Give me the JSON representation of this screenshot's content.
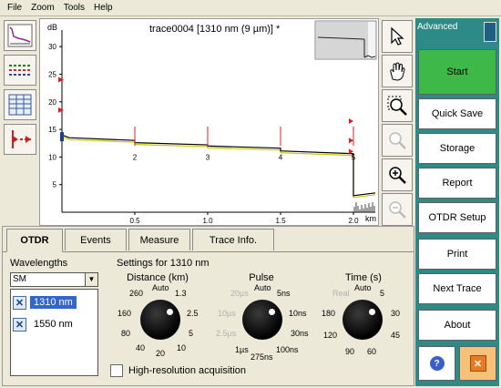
{
  "menu": [
    "File",
    "Zoom",
    "Tools",
    "Help"
  ],
  "graph": {
    "title": "trace0004 [1310 nm (9 µm)] *",
    "y_unit": "dB",
    "x_unit": "km",
    "y_ticks": [
      "30",
      "25",
      "20",
      "15",
      "10",
      "5"
    ],
    "x_ticks": [
      "0.5",
      "1.0",
      "1.5",
      "2.0"
    ],
    "event_labels": [
      "2",
      "3",
      "4",
      "5"
    ]
  },
  "chart_data": {
    "type": "line",
    "title": "trace0004 [1310 nm (9 µm)] *",
    "xlabel": "km",
    "ylabel": "dB",
    "xlim": [
      0,
      2.15
    ],
    "ylim": [
      0,
      33
    ],
    "x_ticks": [
      0.5,
      1.0,
      1.5,
      2.0
    ],
    "y_ticks": [
      5,
      10,
      15,
      20,
      25,
      30
    ],
    "series": [
      {
        "x": [
          0,
          0.05,
          0.5,
          0.5,
          1.0,
          1.0,
          1.5,
          1.5,
          2.0,
          2.0,
          2.15
        ],
        "values": [
          14,
          13.5,
          13.0,
          12.6,
          12.2,
          12.0,
          11.6,
          11.1,
          10.6,
          3.0,
          3.5
        ]
      }
    ],
    "events": [
      {
        "label": "2",
        "x": 0.5
      },
      {
        "label": "3",
        "x": 1.0
      },
      {
        "label": "4",
        "x": 1.5
      },
      {
        "label": "5",
        "x": 2.0
      }
    ]
  },
  "side": {
    "header": "Advanced",
    "buttons": [
      "Start",
      "Quick Save",
      "Storage",
      "Report",
      "OTDR Setup",
      "Print",
      "Next Trace",
      "About"
    ],
    "help_glyph": "?",
    "close_glyph": "✕"
  },
  "tabs": [
    "OTDR",
    "Events",
    "Measure",
    "Trace Info."
  ],
  "wavelengths": {
    "label": "Wavelengths",
    "mode": "SM",
    "items": [
      "1310 nm",
      "1550 nm"
    ]
  },
  "settings": {
    "title": "Settings for 1310 nm",
    "distance": {
      "title": "Distance (km)",
      "labels": [
        "260",
        "Auto",
        "1.3",
        "160",
        "2.5",
        "80",
        "5",
        "40",
        "20",
        "10"
      ]
    },
    "pulse": {
      "title": "Pulse",
      "labels": [
        "20µs",
        "Auto",
        "5ns",
        "10µs",
        "10ns",
        "2.5µs",
        "30ns",
        "1µs",
        "275ns",
        "100ns"
      ]
    },
    "time": {
      "title": "Time (s)",
      "labels": [
        "Real",
        "Auto",
        "5",
        "180",
        "30",
        "120",
        "45",
        "90",
        "60"
      ]
    },
    "hires_label": "High-resolution acquisition"
  },
  "icons": {
    "trace": "trace-icon",
    "events": "events-icon",
    "table": "table-icon",
    "markers": "markers-icon",
    "pointer": "pointer-icon",
    "hand": "hand-icon",
    "zoom_area": "zoom-area-icon",
    "zoom_fit": "zoom-fit-icon",
    "zoom_in": "zoom-in-icon",
    "zoom_out": "zoom-out-icon",
    "battery": "battery-icon"
  },
  "colors": {
    "side_panel": "#2e8a86",
    "start": "#3fb84a",
    "trace": "#000000",
    "reference": "#c8c800",
    "marker": "#e02020",
    "selection": "#3366cc"
  }
}
